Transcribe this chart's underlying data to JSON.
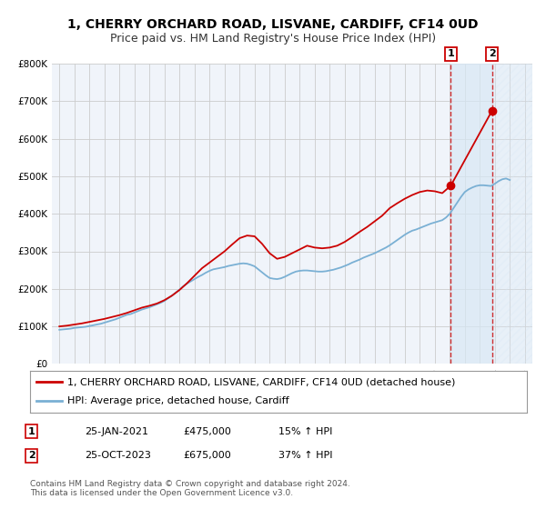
{
  "title": "1, CHERRY ORCHARD ROAD, LISVANE, CARDIFF, CF14 0UD",
  "subtitle": "Price paid vs. HM Land Registry's House Price Index (HPI)",
  "ylim": [
    0,
    800000
  ],
  "xlim": [
    1994.5,
    2026.5
  ],
  "yticks": [
    0,
    100000,
    200000,
    300000,
    400000,
    500000,
    600000,
    700000,
    800000
  ],
  "ytick_labels": [
    "£0",
    "£100K",
    "£200K",
    "£300K",
    "£400K",
    "£500K",
    "£600K",
    "£700K",
    "£800K"
  ],
  "xticks": [
    1995,
    1996,
    1997,
    1998,
    1999,
    2000,
    2001,
    2002,
    2003,
    2004,
    2005,
    2006,
    2007,
    2008,
    2009,
    2010,
    2011,
    2012,
    2013,
    2014,
    2015,
    2016,
    2017,
    2018,
    2019,
    2020,
    2021,
    2022,
    2023,
    2024,
    2025,
    2026
  ],
  "grid_color": "#cccccc",
  "background_color": "#ffffff",
  "plot_bg_color": "#f0f4fa",
  "line1_color": "#cc0000",
  "line2_color": "#7ab0d4",
  "line1_label": "1, CHERRY ORCHARD ROAD, LISVANE, CARDIFF, CF14 0UD (detached house)",
  "line2_label": "HPI: Average price, detached house, Cardiff",
  "vline_color": "#cc0000",
  "shade_color": "#d8e8f5",
  "hatch_color": "#c0c8d8",
  "point1_x": 2021.07,
  "point1_y": 475000,
  "point2_x": 2023.82,
  "point2_y": 675000,
  "point1_label": "1",
  "point2_label": "2",
  "annotation1": "25-JAN-2021",
  "annotation1_price": "£475,000",
  "annotation1_hpi": "15% ↑ HPI",
  "annotation2": "25-OCT-2023",
  "annotation2_price": "£675,000",
  "annotation2_hpi": "37% ↑ HPI",
  "footer": "Contains HM Land Registry data © Crown copyright and database right 2024.\nThis data is licensed under the Open Government Licence v3.0.",
  "title_fontsize": 10,
  "subtitle_fontsize": 9,
  "axis_fontsize": 7.5,
  "legend_fontsize": 8,
  "annotation_fontsize": 8,
  "footer_fontsize": 6.5,
  "hpi_line_data_x": [
    1995.0,
    1995.25,
    1995.5,
    1995.75,
    1996.0,
    1996.25,
    1996.5,
    1996.75,
    1997.0,
    1997.25,
    1997.5,
    1997.75,
    1998.0,
    1998.25,
    1998.5,
    1998.75,
    1999.0,
    1999.25,
    1999.5,
    1999.75,
    2000.0,
    2000.25,
    2000.5,
    2000.75,
    2001.0,
    2001.25,
    2001.5,
    2001.75,
    2002.0,
    2002.25,
    2002.5,
    2002.75,
    2003.0,
    2003.25,
    2003.5,
    2003.75,
    2004.0,
    2004.25,
    2004.5,
    2004.75,
    2005.0,
    2005.25,
    2005.5,
    2005.75,
    2006.0,
    2006.25,
    2006.5,
    2006.75,
    2007.0,
    2007.25,
    2007.5,
    2007.75,
    2008.0,
    2008.25,
    2008.5,
    2008.75,
    2009.0,
    2009.25,
    2009.5,
    2009.75,
    2010.0,
    2010.25,
    2010.5,
    2010.75,
    2011.0,
    2011.25,
    2011.5,
    2011.75,
    2012.0,
    2012.25,
    2012.5,
    2012.75,
    2013.0,
    2013.25,
    2013.5,
    2013.75,
    2014.0,
    2014.25,
    2014.5,
    2014.75,
    2015.0,
    2015.25,
    2015.5,
    2015.75,
    2016.0,
    2016.25,
    2016.5,
    2016.75,
    2017.0,
    2017.25,
    2017.5,
    2017.75,
    2018.0,
    2018.25,
    2018.5,
    2018.75,
    2019.0,
    2019.25,
    2019.5,
    2019.75,
    2020.0,
    2020.25,
    2020.5,
    2020.75,
    2021.0,
    2021.25,
    2021.5,
    2021.75,
    2022.0,
    2022.25,
    2022.5,
    2022.75,
    2023.0,
    2023.25,
    2023.5,
    2023.75,
    2024.0,
    2024.25,
    2024.5,
    2024.75,
    2025.0
  ],
  "hpi_line_data_y": [
    91000,
    92000,
    93000,
    94000,
    96000,
    97000,
    98000,
    99000,
    101000,
    103000,
    105000,
    107000,
    110000,
    113000,
    116000,
    119000,
    123000,
    127000,
    131000,
    133000,
    137000,
    141000,
    145000,
    148000,
    151000,
    155000,
    159000,
    163000,
    168000,
    175000,
    182000,
    190000,
    198000,
    207000,
    214000,
    220000,
    226000,
    232000,
    237000,
    243000,
    248000,
    252000,
    254000,
    256000,
    258000,
    261000,
    263000,
    265000,
    267000,
    268000,
    267000,
    264000,
    260000,
    252000,
    244000,
    236000,
    229000,
    227000,
    226000,
    228000,
    232000,
    237000,
    242000,
    246000,
    248000,
    249000,
    249000,
    248000,
    247000,
    246000,
    246000,
    247000,
    249000,
    251000,
    254000,
    257000,
    261000,
    265000,
    270000,
    274000,
    278000,
    283000,
    287000,
    291000,
    295000,
    300000,
    305000,
    310000,
    316000,
    323000,
    330000,
    337000,
    344000,
    350000,
    355000,
    358000,
    362000,
    366000,
    370000,
    374000,
    377000,
    380000,
    383000,
    390000,
    400000,
    415000,
    430000,
    445000,
    458000,
    465000,
    470000,
    474000,
    476000,
    476000,
    475000,
    474000,
    480000,
    487000,
    492000,
    494000,
    490000
  ],
  "price_line_data_x": [
    1995.0,
    1995.5,
    1996.0,
    1996.5,
    1997.0,
    1997.5,
    1998.0,
    1998.5,
    1999.0,
    1999.5,
    2000.0,
    2000.5,
    2001.0,
    2001.5,
    2002.0,
    2002.5,
    2003.0,
    2003.5,
    2004.0,
    2004.5,
    2005.0,
    2005.5,
    2006.0,
    2006.5,
    2007.0,
    2007.5,
    2008.0,
    2008.5,
    2009.0,
    2009.5,
    2010.0,
    2010.5,
    2011.0,
    2011.5,
    2012.0,
    2012.5,
    2013.0,
    2013.5,
    2014.0,
    2014.5,
    2015.0,
    2015.5,
    2016.0,
    2016.5,
    2017.0,
    2017.5,
    2018.0,
    2018.5,
    2019.0,
    2019.5,
    2020.0,
    2020.5,
    2021.07,
    2023.82
  ],
  "price_line_data_y": [
    100000,
    102000,
    105000,
    108000,
    112000,
    116000,
    120000,
    125000,
    130000,
    136000,
    143000,
    150000,
    155000,
    161000,
    170000,
    182000,
    197000,
    215000,
    235000,
    255000,
    270000,
    285000,
    300000,
    318000,
    335000,
    342000,
    340000,
    320000,
    295000,
    280000,
    285000,
    295000,
    305000,
    315000,
    310000,
    308000,
    310000,
    315000,
    325000,
    338000,
    352000,
    365000,
    380000,
    395000,
    415000,
    428000,
    440000,
    450000,
    458000,
    462000,
    460000,
    455000,
    475000,
    675000
  ]
}
